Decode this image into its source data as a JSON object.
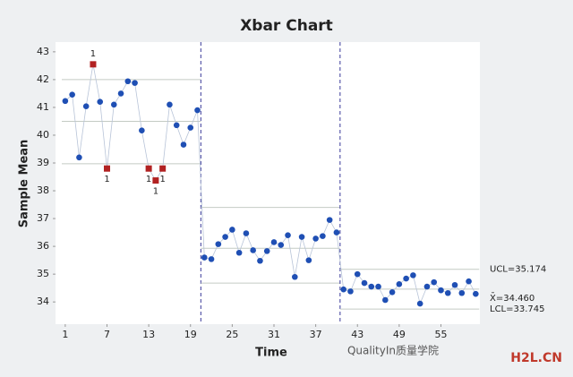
{
  "chart_data": {
    "type": "control",
    "title": "Xbar Chart",
    "xlabel": "Time",
    "ylabel": "Sample Mean",
    "x": [
      1,
      2,
      3,
      4,
      5,
      6,
      7,
      8,
      9,
      10,
      11,
      12,
      13,
      14,
      15,
      16,
      17,
      18,
      19,
      20,
      21,
      22,
      23,
      24,
      25,
      26,
      27,
      28,
      29,
      30,
      31,
      32,
      33,
      34,
      35,
      36,
      37,
      38,
      39,
      40,
      41,
      42,
      43,
      44,
      45,
      46,
      47,
      48,
      49,
      50,
      51,
      52,
      53,
      54,
      55,
      56,
      57,
      58,
      59,
      60
    ],
    "series": [
      {
        "color": "#1f4fb4",
        "values": [
          41.23,
          41.46,
          39.2,
          41.04,
          42.55,
          41.2,
          38.8,
          41.1,
          41.5,
          41.94,
          41.88,
          40.17,
          38.8,
          38.37,
          38.8,
          41.1,
          40.36,
          39.66,
          40.27,
          40.9,
          35.6,
          35.54,
          36.08,
          36.34,
          36.6,
          35.77,
          36.47,
          35.86,
          35.48,
          35.83,
          36.15,
          36.05,
          36.4,
          34.9,
          36.34,
          35.5,
          36.28,
          36.37,
          36.95,
          36.5,
          34.45,
          34.38,
          35.0,
          34.68,
          34.55,
          34.55,
          34.07,
          34.35,
          34.64,
          34.84,
          34.96,
          33.94,
          34.55,
          34.71,
          34.42,
          34.32,
          34.61,
          34.32,
          34.74,
          34.29
        ],
        "flags": [
          null,
          null,
          null,
          null,
          "1",
          null,
          "1",
          null,
          null,
          null,
          null,
          null,
          "1",
          "1",
          "1",
          null,
          null,
          null,
          null,
          null,
          null,
          null,
          null,
          null,
          null,
          null,
          null,
          null,
          null,
          null,
          null,
          null,
          null,
          null,
          null,
          null,
          null,
          null,
          null,
          null,
          null,
          null,
          null,
          null,
          null,
          null,
          null,
          null,
          null,
          null,
          null,
          null,
          null,
          null,
          null,
          null,
          null,
          null,
          null,
          null
        ],
        "flag_color": "#b22222"
      }
    ],
    "stages": [
      {
        "start": 1,
        "end": 20,
        "ucl": 42.0,
        "center": 40.5,
        "lcl": 38.97
      },
      {
        "start": 21,
        "end": 40,
        "ucl": 37.4,
        "center": 35.93,
        "lcl": 34.68
      },
      {
        "start": 41,
        "end": 60,
        "ucl": {
          "value": 35.174,
          "label": "UCL=35.174"
        },
        "center": {
          "value": 34.46,
          "label": "X̄=34.460"
        },
        "lcl": {
          "value": 33.745,
          "label": "LCL=33.745"
        }
      }
    ],
    "limit_color": "#c4cbc4",
    "stage_line_color": "#5a5aaa",
    "xlim": [
      -0.4,
      60.6
    ],
    "ylim": [
      33.2,
      43.35
    ],
    "xticks": [
      1,
      7,
      13,
      19,
      25,
      31,
      37,
      43,
      49,
      55
    ],
    "yticks": [
      34,
      35,
      36,
      37,
      38,
      39,
      40,
      41,
      42,
      43
    ],
    "watermark": [
      "QualityIn质量学院",
      "H2L.CN"
    ]
  }
}
